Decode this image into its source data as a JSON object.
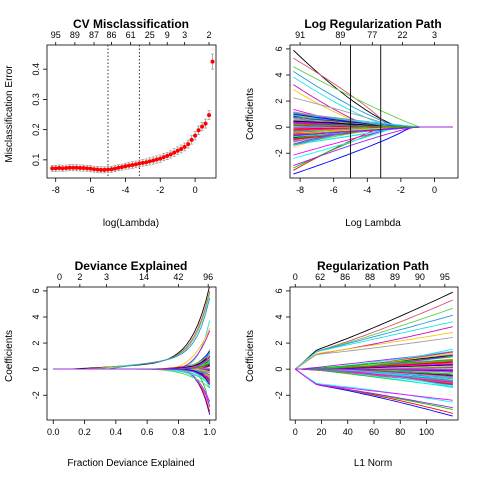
{
  "colors": {
    "palette": [
      "#000000",
      "#df536b",
      "#61d04f",
      "#2297e6",
      "#28e2e5",
      "#cd0bbc",
      "#f5c710",
      "#9e9e9e",
      "#0000ff",
      "#ff0000",
      "#00cd00",
      "#a020f0",
      "#00ffff",
      "#ff00ff"
    ],
    "cv_points": "#ff0000",
    "cv_errorbars": "#9e9e9e"
  },
  "chart_data": [
    {
      "type": "scatter",
      "title": "CV Misclassification",
      "xlabel": "log(Lambda)",
      "ylabel": "Misclassification Error",
      "xlim": [
        -8.5,
        1.2
      ],
      "ylim": [
        0.04,
        0.48
      ],
      "xticks": [
        "-8",
        "-6",
        "-4",
        "-2",
        "0"
      ],
      "yticks": [
        "0.1",
        "0.2",
        "0.3",
        "0.4"
      ],
      "top_ticks": [
        {
          "x": -8.0,
          "label": "95"
        },
        {
          "x": -6.9,
          "label": "89"
        },
        {
          "x": -5.8,
          "label": "87"
        },
        {
          "x": -4.8,
          "label": "86"
        },
        {
          "x": -3.7,
          "label": "61"
        },
        {
          "x": -2.6,
          "label": "25"
        },
        {
          "x": -1.6,
          "label": "9"
        },
        {
          "x": -0.6,
          "label": "3"
        },
        {
          "x": 0.8,
          "label": "2"
        }
      ],
      "vlines": [
        -5.0,
        -3.2
      ],
      "x": [
        -8.2,
        -8.0,
        -7.8,
        -7.6,
        -7.4,
        -7.2,
        -7.0,
        -6.8,
        -6.6,
        -6.4,
        -6.2,
        -6.0,
        -5.8,
        -5.6,
        -5.4,
        -5.2,
        -5.0,
        -4.8,
        -4.6,
        -4.4,
        -4.2,
        -4.0,
        -3.8,
        -3.6,
        -3.4,
        -3.2,
        -3.0,
        -2.8,
        -2.6,
        -2.4,
        -2.2,
        -2.0,
        -1.8,
        -1.6,
        -1.4,
        -1.2,
        -1.0,
        -0.8,
        -0.6,
        -0.4,
        -0.2,
        0.0,
        0.2,
        0.4,
        0.6,
        0.8,
        1.0
      ],
      "y": [
        0.072,
        0.072,
        0.073,
        0.072,
        0.073,
        0.074,
        0.074,
        0.074,
        0.073,
        0.073,
        0.072,
        0.071,
        0.069,
        0.068,
        0.067,
        0.067,
        0.068,
        0.069,
        0.071,
        0.074,
        0.076,
        0.079,
        0.081,
        0.083,
        0.085,
        0.088,
        0.09,
        0.092,
        0.095,
        0.098,
        0.101,
        0.104,
        0.109,
        0.113,
        0.118,
        0.124,
        0.13,
        0.136,
        0.143,
        0.152,
        0.166,
        0.18,
        0.198,
        0.21,
        0.22,
        0.248,
        0.425
      ],
      "err": [
        0.01,
        0.01,
        0.01,
        0.01,
        0.01,
        0.01,
        0.01,
        0.01,
        0.01,
        0.01,
        0.01,
        0.01,
        0.01,
        0.01,
        0.01,
        0.01,
        0.01,
        0.01,
        0.01,
        0.01,
        0.01,
        0.01,
        0.011,
        0.011,
        0.011,
        0.011,
        0.011,
        0.011,
        0.012,
        0.012,
        0.012,
        0.012,
        0.012,
        0.012,
        0.012,
        0.013,
        0.013,
        0.013,
        0.013,
        0.013,
        0.014,
        0.014,
        0.014,
        0.014,
        0.015,
        0.015,
        0.025
      ]
    },
    {
      "type": "line",
      "title": "Log Regularization Path",
      "xlabel": "Log Lambda",
      "ylabel": "Coefficients",
      "xlim": [
        -8.6,
        1.4
      ],
      "ylim": [
        -3.9,
        6.3
      ],
      "xticks": [
        "-8",
        "-6",
        "-4",
        "-2",
        "0"
      ],
      "yticks": [
        "-2",
        "0",
        "2",
        "4",
        "6"
      ],
      "top_ticks": [
        {
          "x": -8.0,
          "label": "91"
        },
        {
          "x": -5.6,
          "label": "89"
        },
        {
          "x": -3.7,
          "label": "77"
        },
        {
          "x": -1.9,
          "label": "22"
        },
        {
          "x": 0.0,
          "label": "3"
        }
      ],
      "vlines": [
        -5.0,
        -3.2
      ],
      "x_from": -8.4,
      "x_to": 1.1,
      "n_paths": 96,
      "y_start_max": 5.9,
      "y_start_min": -3.6
    },
    {
      "type": "line",
      "title": "Deviance Explained",
      "xlabel": "Fraction Deviance Explained",
      "ylabel": "Coefficients",
      "xlim": [
        -0.04,
        1.04
      ],
      "ylim": [
        -3.9,
        6.3
      ],
      "xticks": [
        "0.0",
        "0.2",
        "0.4",
        "0.6",
        "0.8",
        "1.0"
      ],
      "yticks": [
        "-2",
        "0",
        "2",
        "4",
        "6"
      ],
      "top_ticks": [
        {
          "x": 0.04,
          "label": "0"
        },
        {
          "x": 0.17,
          "label": "2"
        },
        {
          "x": 0.34,
          "label": "3"
        },
        {
          "x": 0.58,
          "label": "14"
        },
        {
          "x": 0.8,
          "label": "42"
        },
        {
          "x": 0.99,
          "label": "96"
        }
      ],
      "n_paths": 96,
      "y_end_max": 5.8,
      "y_end_min": -3.5
    },
    {
      "type": "line",
      "title": "Regularization Path",
      "xlabel": "L1 Norm",
      "ylabel": "Coefficients",
      "xlim": [
        -4,
        124
      ],
      "ylim": [
        -3.9,
        6.3
      ],
      "xticks": [
        "0",
        "20",
        "40",
        "60",
        "80",
        "100"
      ],
      "yticks": [
        "-2",
        "0",
        "2",
        "4",
        "6"
      ],
      "top_ticks": [
        {
          "x": 0,
          "label": "0"
        },
        {
          "x": 19,
          "label": "62"
        },
        {
          "x": 38,
          "label": "86"
        },
        {
          "x": 57,
          "label": "88"
        },
        {
          "x": 76,
          "label": "89"
        },
        {
          "x": 95,
          "label": "90"
        },
        {
          "x": 114,
          "label": "95"
        }
      ],
      "x_to": 120,
      "n_paths": 96,
      "y_end_max": 5.9,
      "y_end_min": -3.6
    }
  ]
}
